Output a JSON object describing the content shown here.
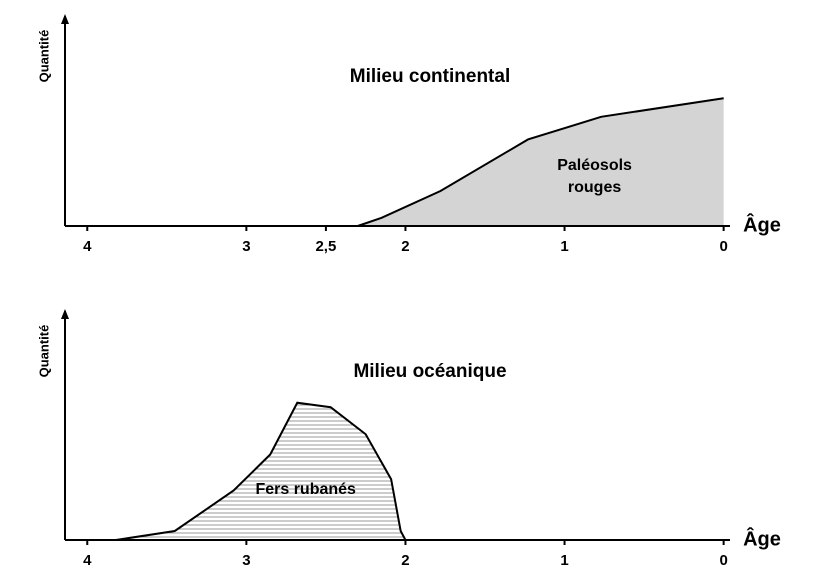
{
  "chart_data": [
    {
      "type": "area",
      "title": "Milieu continental",
      "ylabel": "Quantité",
      "xlabel": "Âge",
      "annotation": [
        "Paléosols",
        "rouges"
      ],
      "x": [
        2.3,
        2.15,
        1.78,
        1.23,
        0.77,
        0
      ],
      "values": [
        0,
        0.04,
        0.17,
        0.42,
        0.53,
        0.62
      ],
      "color": "#d4d4d4",
      "pattern": "solid",
      "xlim": [
        4.14,
        -0.04
      ],
      "ylim": [
        0,
        1
      ],
      "xticks": [
        4,
        3,
        {
          "value": 2.5,
          "label": "2,5"
        },
        2,
        1,
        0
      ]
    },
    {
      "type": "area",
      "title": "Milieu océanique",
      "ylabel": "Quantité",
      "xlabel": "Âge",
      "annotation": [
        "Fers rubanés"
      ],
      "x": [
        3.82,
        3.45,
        3.08,
        2.85,
        2.68,
        2.47,
        2.25,
        2.09,
        2.03,
        2.0
      ],
      "values": [
        0,
        0.04,
        0.22,
        0.38,
        0.61,
        0.59,
        0.47,
        0.27,
        0.04,
        0
      ],
      "color": "#9a9a9a",
      "pattern": "horizontal-lines",
      "xlim": [
        4.14,
        -0.04
      ],
      "ylim": [
        0,
        1
      ],
      "xticks": [
        4,
        3,
        2,
        1,
        0
      ]
    }
  ]
}
